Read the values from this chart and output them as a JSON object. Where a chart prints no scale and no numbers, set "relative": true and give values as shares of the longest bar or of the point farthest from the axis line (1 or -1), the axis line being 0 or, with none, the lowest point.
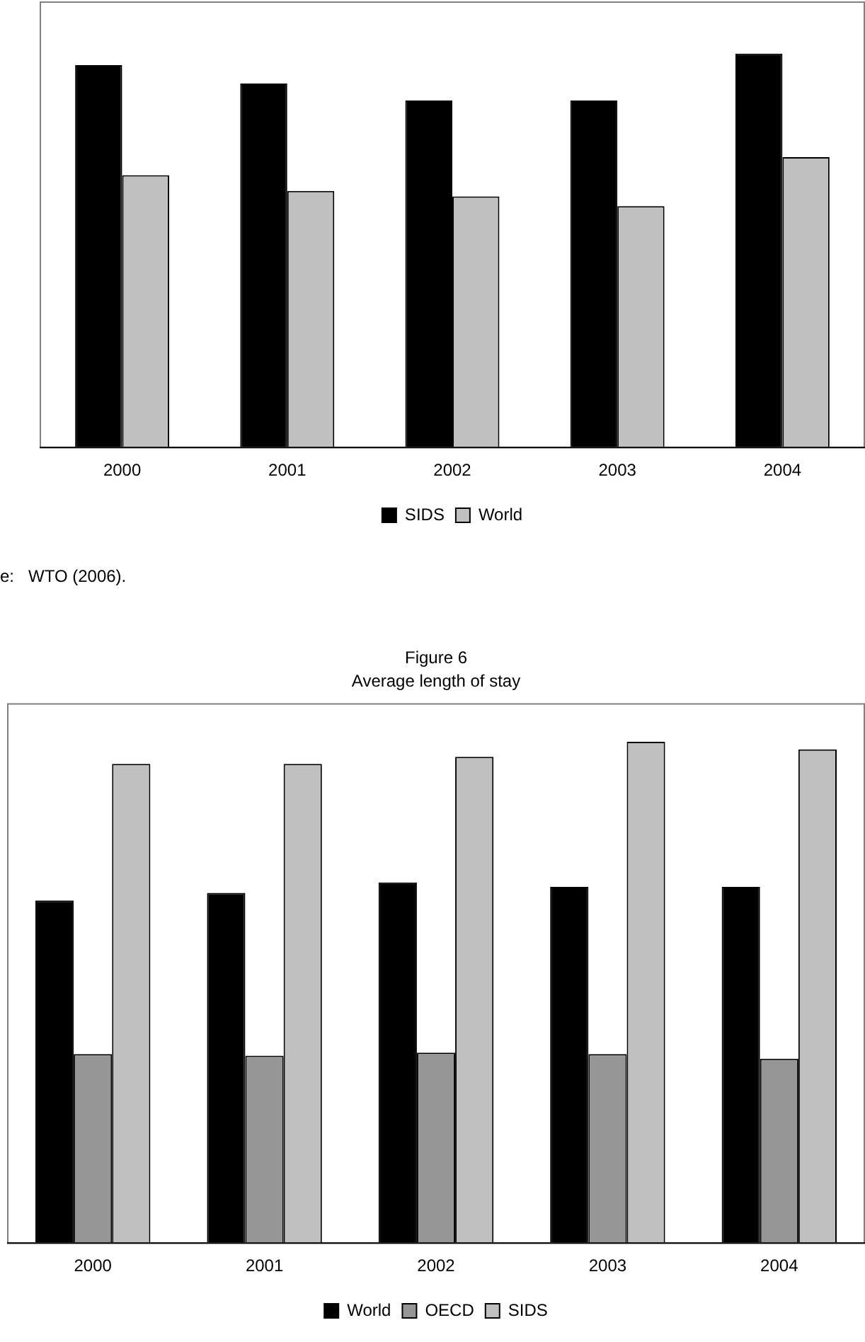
{
  "chart_data": [
    {
      "type": "bar",
      "categories": [
        "2000",
        "2001",
        "2002",
        "2003",
        "2004"
      ],
      "relative": true,
      "legend": "bottom",
      "grid": false,
      "series": [
        {
          "name": "SIDS",
          "color": "#000000",
          "values": [
            0.971,
            0.924,
            0.881,
            0.881,
            1
          ]
        },
        {
          "name": "World",
          "color": "#c0c0c0",
          "values": [
            0.691,
            0.651,
            0.637,
            0.612,
            0.737
          ]
        }
      ],
      "annotations": [
        "e:   WTO (2006)."
      ]
    },
    {
      "type": "bar",
      "title": "Figure 6",
      "subtitle": "Average length of stay",
      "categories": [
        "2000",
        "2001",
        "2002",
        "2003",
        "2004"
      ],
      "relative": true,
      "legend": "bottom",
      "grid": false,
      "series": [
        {
          "name": "World",
          "color": "#000000",
          "values": [
            0.683,
            0.698,
            0.719,
            0.71,
            0.71
          ]
        },
        {
          "name": "OECD",
          "color": "#969696",
          "values": [
            0.376,
            0.373,
            0.379,
            0.376,
            0.367
          ]
        },
        {
          "name": "SIDS",
          "color": "#c0c0c0",
          "values": [
            0.956,
            0.956,
            0.97,
            1,
            0.985
          ]
        }
      ]
    }
  ]
}
